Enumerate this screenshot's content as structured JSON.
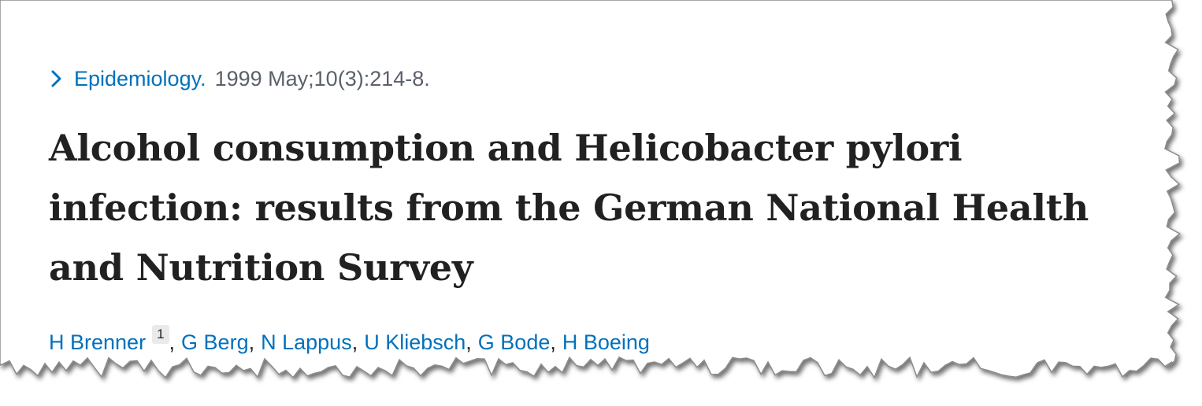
{
  "citation": {
    "journal": "Epidemiology.",
    "date_volume": "1999 May;10(3):214-8."
  },
  "article": {
    "title": "Alcohol consumption and Helicobacter pylori infection: results from the German National Health and Nutrition Survey"
  },
  "authors": [
    {
      "name": "H Brenner",
      "affiliation": "1"
    },
    {
      "name": "G Berg"
    },
    {
      "name": "N Lappus"
    },
    {
      "name": "U Kliebsch"
    },
    {
      "name": "G Bode"
    },
    {
      "name": "H Boeing"
    }
  ],
  "colors": {
    "link": "#0071bc",
    "muted_text": "#5b616b",
    "title_text": "#212121",
    "background": "#ffffff",
    "torn_edge_shadow": "#6b6b6b"
  },
  "icons": {
    "expand": "chevron-right-icon"
  }
}
